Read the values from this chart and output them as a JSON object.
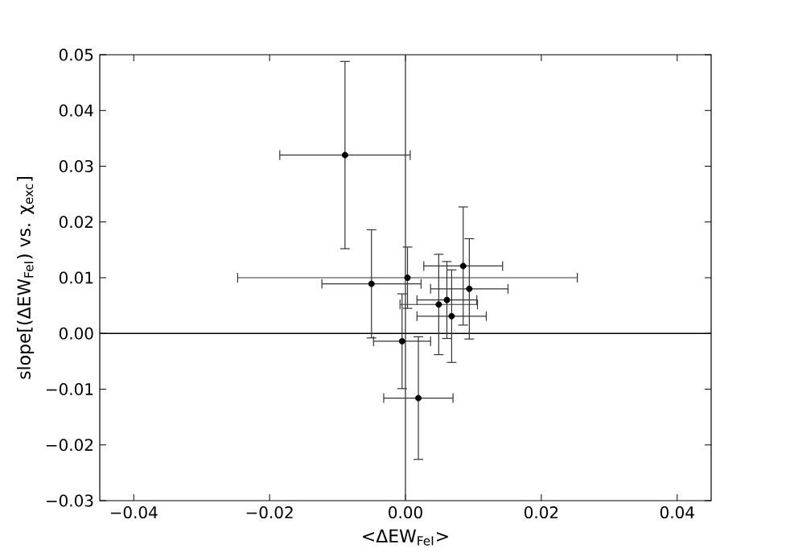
{
  "chart_data": {
    "type": "scatter",
    "xlabel": "<ΔEW$_{FeI}$>",
    "ylabel": "slope[(ΔEW$_{FeI}$) vs. χ$_{exc}$]",
    "x": [
      -0.0089,
      -0.005,
      0.0003,
      -0.0005,
      0.0019,
      0.0085,
      0.0094,
      0.0061,
      0.0049,
      0.0068
    ],
    "values": [
      0.032,
      0.0089,
      0.01,
      -0.0014,
      -0.0116,
      0.0121,
      0.008,
      0.006,
      0.0052,
      0.0031
    ],
    "errors": [
      0.0168,
      0.0097,
      0.0055,
      0.0085,
      0.011,
      0.0106,
      0.009,
      0.0069,
      0.009,
      0.0083
    ],
    "xerrors": [
      0.0096,
      0.0073,
      0.025,
      0.0042,
      0.0051,
      0.0058,
      0.0057,
      0.0044,
      0.0057,
      0.0051
    ],
    "color": "#000000",
    "marker": "circle",
    "xlim": [
      -0.045,
      0.045
    ],
    "ylim": [
      -0.03,
      0.05
    ],
    "xticks": [
      {
        "value": -0.04,
        "label": "−0.04"
      },
      {
        "value": -0.02,
        "label": "−0.02"
      },
      {
        "value": 0,
        "label": "0.00"
      },
      {
        "value": 0.02,
        "label": "0.02"
      },
      {
        "value": 0.04,
        "label": "0.04"
      }
    ],
    "yticks": [
      {
        "value": -0.03,
        "label": "−0.03"
      },
      {
        "value": -0.02,
        "label": "−0.02"
      },
      {
        "value": -0.01,
        "label": "−0.01"
      },
      {
        "value": 0,
        "label": "0.00"
      },
      {
        "value": 0.01,
        "label": "0.01"
      },
      {
        "value": 0.02,
        "label": "0.02"
      },
      {
        "value": 0.03,
        "label": "0.03"
      },
      {
        "value": 0.04,
        "label": "0.04"
      },
      {
        "value": 0.05,
        "label": "0.05"
      }
    ],
    "ref_lines": [
      {
        "axis": "x",
        "value": 0,
        "color": "#444444"
      },
      {
        "axis": "y",
        "value": 0,
        "color": "#000000"
      }
    ],
    "grid": false
  }
}
